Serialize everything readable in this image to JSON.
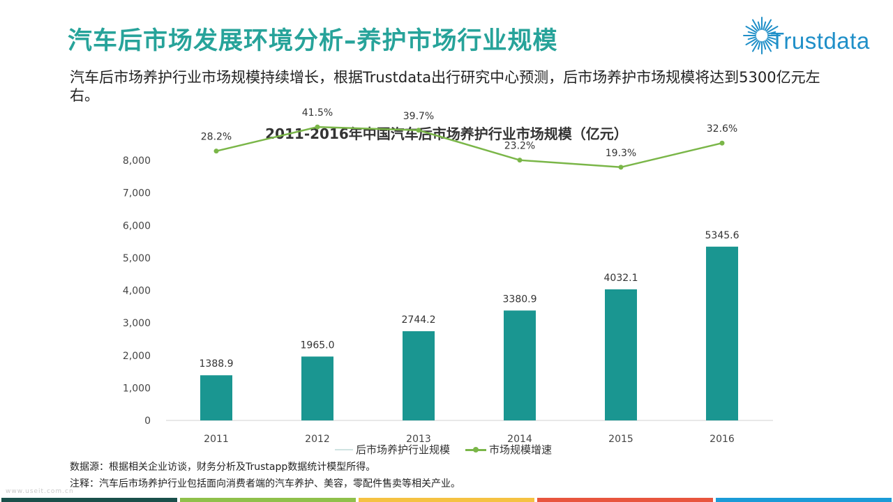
{
  "header": {
    "title": "汽车后市场发展环境分析–养护市场行业规模",
    "logo_text": "Trustdata",
    "subtitle": "汽车后市场养护行业市场规模持续增长，根据Trustdata出行研究中心预测，后市场养护市场规模将达到5300亿元左右。"
  },
  "chart_data": {
    "type": "bar",
    "title": "2011-2016年中国汽车后市场养护行业市场规模（亿元）",
    "categories": [
      "2011",
      "2012",
      "2013",
      "2014",
      "2015",
      "2016"
    ],
    "series": [
      {
        "name": "后市场养护行业规模",
        "type": "bar",
        "values": [
          1388.9,
          1965.0,
          2744.2,
          3380.9,
          4032.1,
          5345.6
        ],
        "labels": [
          "1388.9",
          "1965.0",
          "2744.2",
          "3380.9",
          "4032.1",
          "5345.6"
        ],
        "color": "#1a9691"
      },
      {
        "name": "市场规模增速",
        "type": "line",
        "values": [
          28.2,
          41.5,
          39.7,
          23.2,
          19.3,
          32.6
        ],
        "labels": [
          "28.2%",
          "41.5%",
          "39.7%",
          "23.2%",
          "19.3%",
          "32.6%"
        ],
        "color": "#7ab648"
      }
    ],
    "yticks": [
      "0",
      "1,000",
      "2,000",
      "3,000",
      "4,000",
      "5,000",
      "6,000",
      "7,000",
      "8,000"
    ],
    "ylim": [
      0,
      8000
    ],
    "grid": false,
    "legend_position": "bottom"
  },
  "footer": {
    "source": "数据源：根据相关企业访谈，财务分析及Trustapp数据统计模型所得。",
    "note": "注释：汽车后市场养护行业包括面向消费者端的汽车养护、美容，零配件售卖等相关产业。",
    "watermark": "www.useit.com.cn",
    "stripe_colors": [
      "#1a4f4a",
      "#8fc04a",
      "#f5c242",
      "#e8553e",
      "#1b9bd7"
    ]
  }
}
